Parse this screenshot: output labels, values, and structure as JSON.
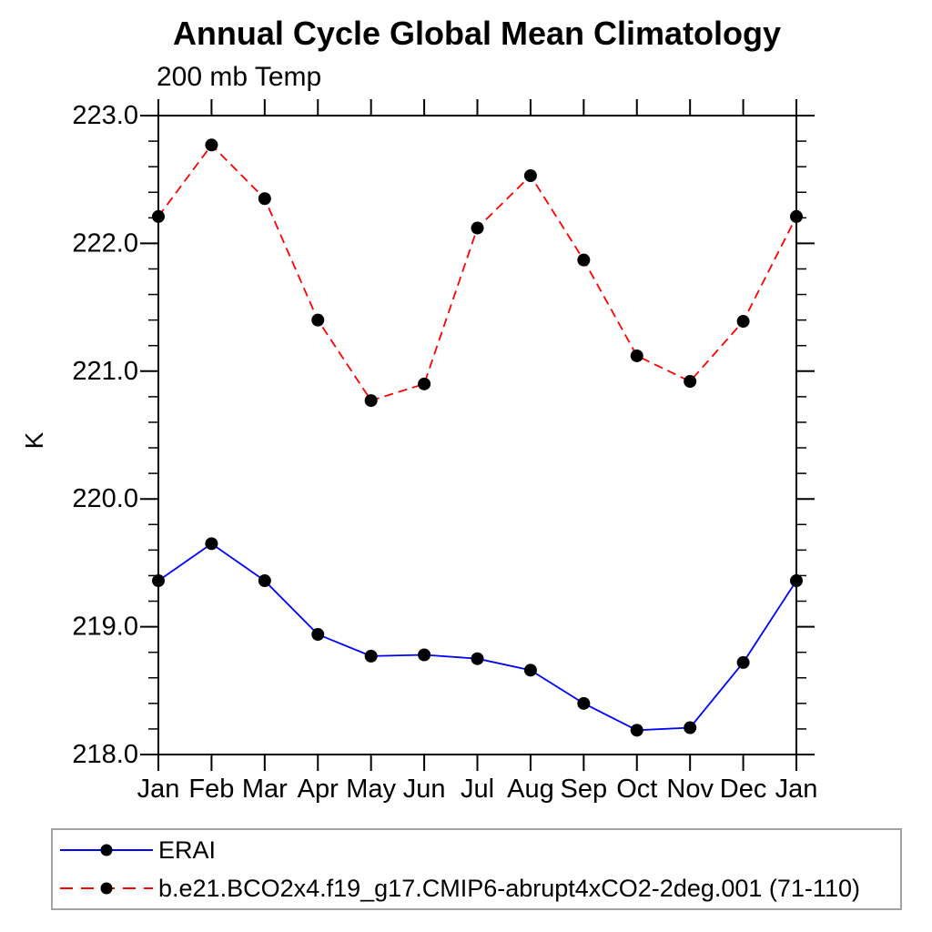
{
  "chart_data": {
    "type": "line",
    "title": "Annual Cycle Global Mean Climatology",
    "subtitle": "200 mb Temp",
    "ylabel": "K",
    "x_categories": [
      "Jan",
      "Feb",
      "Mar",
      "Apr",
      "May",
      "Jun",
      "Jul",
      "Aug",
      "Sep",
      "Oct",
      "Nov",
      "Dec",
      "Jan"
    ],
    "ylim": [
      218.0,
      223.0
    ],
    "ytick_labels": [
      "218.0",
      "219.0",
      "220.0",
      "221.0",
      "222.0",
      "223.0"
    ],
    "ytick_values": [
      218.0,
      219.0,
      220.0,
      221.0,
      222.0,
      223.0
    ],
    "minor_tick_interval": 0.2,
    "grid": false,
    "legend_position": "bottom",
    "axis_color": "#000000",
    "marker_color": "#000000",
    "series": [
      {
        "name": "ERAI",
        "color": "#0000ff",
        "style": "solid",
        "marker": "circle",
        "values": [
          219.36,
          219.65,
          219.36,
          218.94,
          218.77,
          218.78,
          218.75,
          218.66,
          218.4,
          218.19,
          218.21,
          218.72,
          219.36
        ]
      },
      {
        "name": "b.e21.BCO2x4.f19_g17.CMIP6-abrupt4xCO2-2deg.001 (71-110)",
        "color": "#ff0000",
        "style": "dashed",
        "marker": "circle",
        "values": [
          222.21,
          222.77,
          222.35,
          221.4,
          220.77,
          220.9,
          222.12,
          222.53,
          221.87,
          221.12,
          220.92,
          221.39,
          222.21
        ]
      }
    ]
  }
}
